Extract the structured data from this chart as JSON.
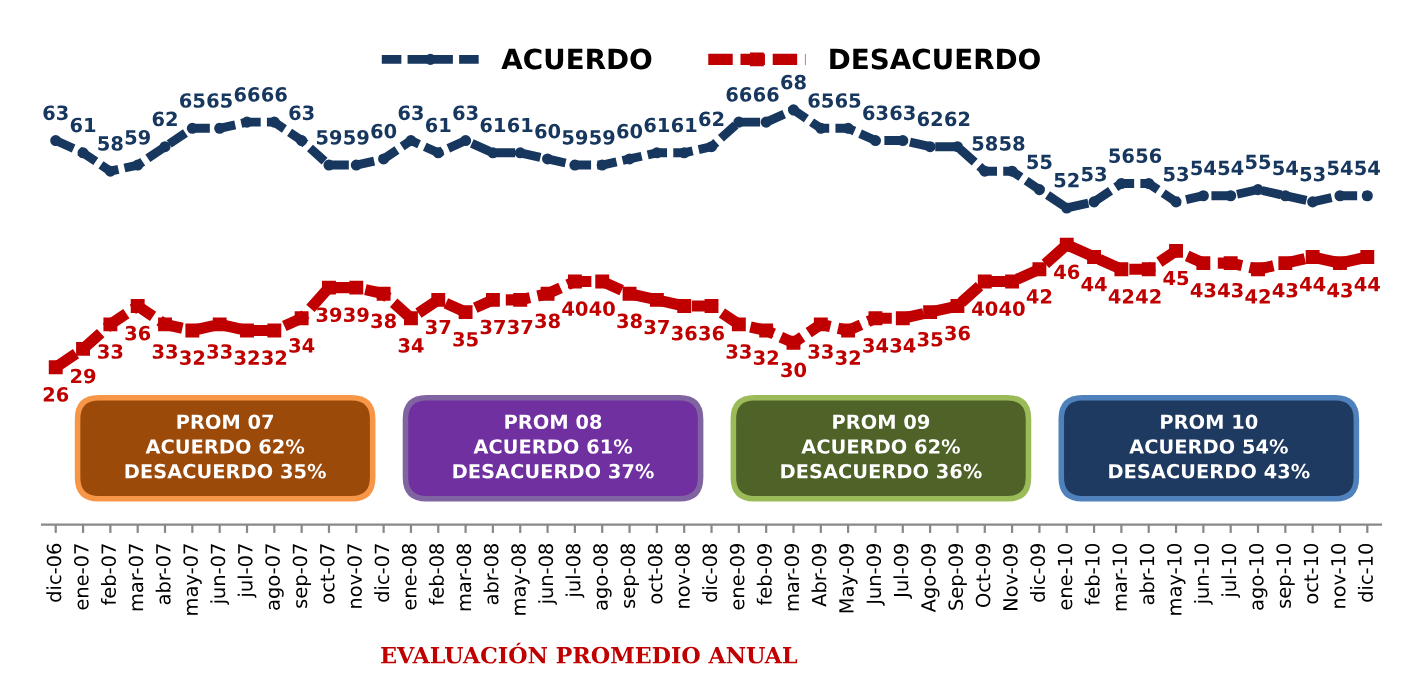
{
  "chart_data": {
    "type": "line",
    "categories": [
      "dic-06",
      "ene-07",
      "feb-07",
      "mar-07",
      "abr-07",
      "may-07",
      "jun-07",
      "jul-07",
      "ago-07",
      "sep-07",
      "oct-07",
      "nov-07",
      "dic-07",
      "ene-08",
      "feb-08",
      "mar-08",
      "abr-08",
      "may-08",
      "jun-08",
      "jul-08",
      "ago-08",
      "sep-08",
      "oct-08",
      "nov-08",
      "dic-08",
      "ene-09",
      "feb-09",
      "mar-09",
      "Abr-09",
      "May-09",
      "Jun-09",
      "Jul-09",
      "Ago-09",
      "Sep-09",
      "Oct-09",
      "Nov-09",
      "dic-09",
      "ene-10",
      "feb-10",
      "mar-10",
      "abr-10",
      "may-10",
      "jun-10",
      "jul-10",
      "ago-10",
      "sep-10",
      "oct-10",
      "nov-10",
      "dic-10"
    ],
    "series": [
      {
        "name": "ACUERDO",
        "color": "#17375e",
        "marker": "circle",
        "line_style": "dashed",
        "values": [
          63,
          61,
          58,
          59,
          62,
          65,
          65,
          66,
          66,
          63,
          59,
          59,
          60,
          63,
          61,
          63,
          61,
          61,
          60,
          59,
          59,
          60,
          61,
          61,
          62,
          66,
          66,
          68,
          65,
          65,
          63,
          63,
          62,
          62,
          58,
          58,
          55,
          52,
          53,
          56,
          56,
          53,
          54,
          54,
          55,
          54,
          53,
          54,
          54
        ]
      },
      {
        "name": "DESACUERDO",
        "color": "#c00000",
        "marker": "square",
        "line_style": "dashed",
        "values": [
          26,
          29,
          33,
          36,
          33,
          32,
          33,
          32,
          32,
          34,
          39,
          39,
          38,
          34,
          37,
          35,
          37,
          37,
          38,
          40,
          40,
          38,
          37,
          36,
          36,
          33,
          32,
          30,
          33,
          32,
          34,
          34,
          35,
          36,
          40,
          40,
          42,
          46,
          44,
          42,
          42,
          45,
          43,
          43,
          42,
          43,
          44,
          43,
          44
        ]
      }
    ],
    "tick_labels": "x",
    "data_labels": true,
    "grid": false,
    "legend": "top",
    "annotations": [
      "PROM 07\nACUERDO 62%\nDESACUERDO 35%",
      "PROM 08\nACUERDO 61%\nDESACUERDO 37%",
      "PROM 09\nACUERDO 62%\nDESACUERDO 36%",
      "PROM 10\nACUERDO 54%\nDESACUERDO 43%",
      "EVALUACIÓN PROMEDIO ANUAL"
    ]
  }
}
